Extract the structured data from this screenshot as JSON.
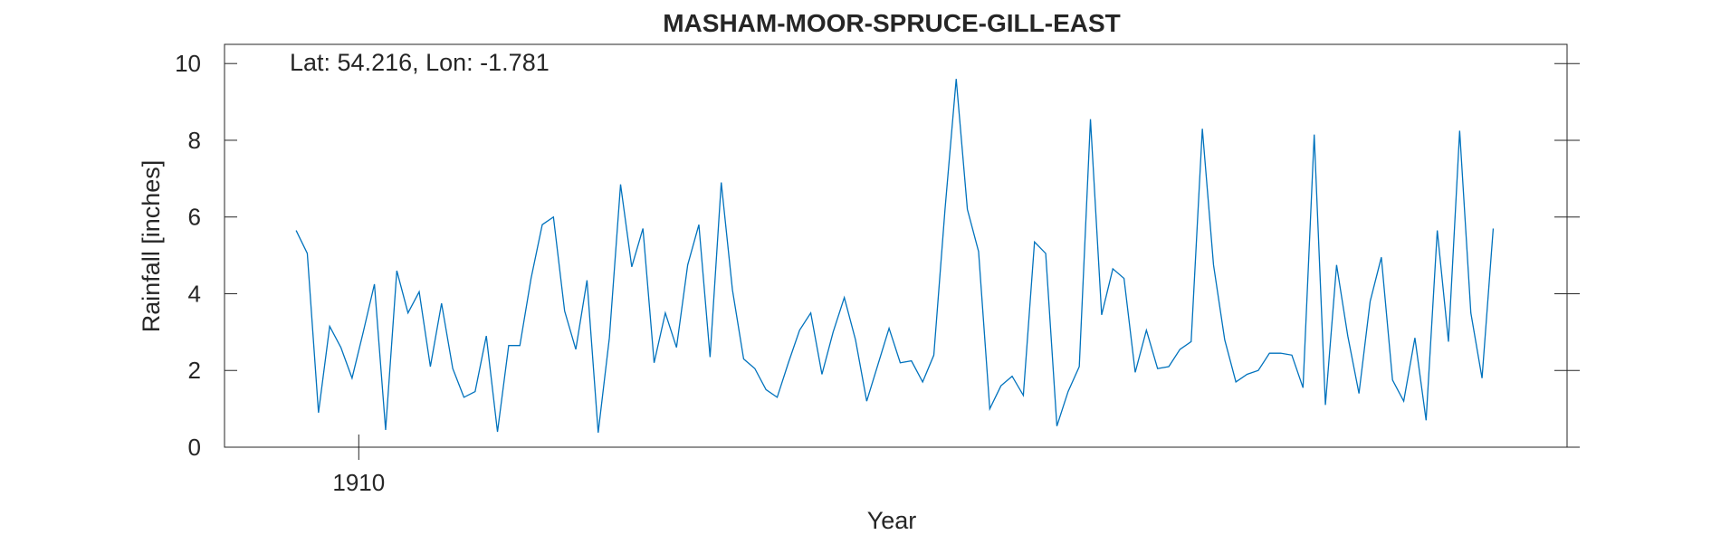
{
  "chart_data": {
    "type": "line",
    "title": "MASHAM-MOOR-SPRUCE-GILL-EAST",
    "annotation": "Lat: 54.216, Lon: -1.781",
    "xlabel": "Year",
    "ylabel": "Rainfall [inches]",
    "xlim": [
      1904,
      1964
    ],
    "ylim": [
      0,
      10.5
    ],
    "x_ticks": [
      1910
    ],
    "x_tick_labels": [
      "1910"
    ],
    "y_ticks": [
      0,
      2,
      4,
      6,
      8,
      10
    ],
    "y_tick_labels": [
      "0",
      "2",
      "4",
      "6",
      "8",
      "10"
    ],
    "grid": false,
    "line_color": "#0072BD",
    "series": [
      {
        "x_start": 1907.2,
        "x_step": 0.5,
        "values": [
          5.65,
          5.05,
          0.9,
          3.15,
          2.6,
          1.8,
          3.0,
          4.25,
          0.45,
          4.6,
          3.5,
          4.05,
          2.1,
          3.75,
          2.05,
          1.3,
          1.45,
          2.9,
          0.4,
          2.65,
          2.65,
          4.4,
          5.8,
          6.0,
          3.55,
          2.55,
          4.35,
          0.38,
          2.85,
          6.85,
          4.7,
          5.7,
          2.2,
          3.5,
          2.6,
          4.75,
          5.8,
          2.35,
          6.9,
          4.1,
          2.3,
          2.05,
          1.5,
          1.3,
          2.2,
          3.05,
          3.5,
          1.9,
          3.0,
          3.9,
          2.8,
          1.2,
          2.15,
          3.1,
          2.2,
          2.25,
          1.7,
          2.4,
          6.2,
          9.6,
          6.2,
          5.1,
          1.0,
          1.6,
          1.85,
          1.35,
          5.35,
          5.05,
          0.55,
          1.45,
          2.1,
          8.55,
          3.45,
          4.65,
          4.4,
          1.95,
          3.05,
          2.05,
          2.1,
          2.55,
          2.75,
          8.3,
          4.75,
          2.8,
          1.7,
          1.9,
          2.0,
          2.45,
          2.45,
          2.4,
          1.55,
          8.15,
          1.1,
          4.75,
          2.9,
          1.4,
          3.8,
          4.95,
          1.75,
          1.2,
          2.85,
          0.7,
          5.65,
          2.75,
          8.25,
          3.5,
          1.8,
          5.7
        ]
      }
    ]
  }
}
